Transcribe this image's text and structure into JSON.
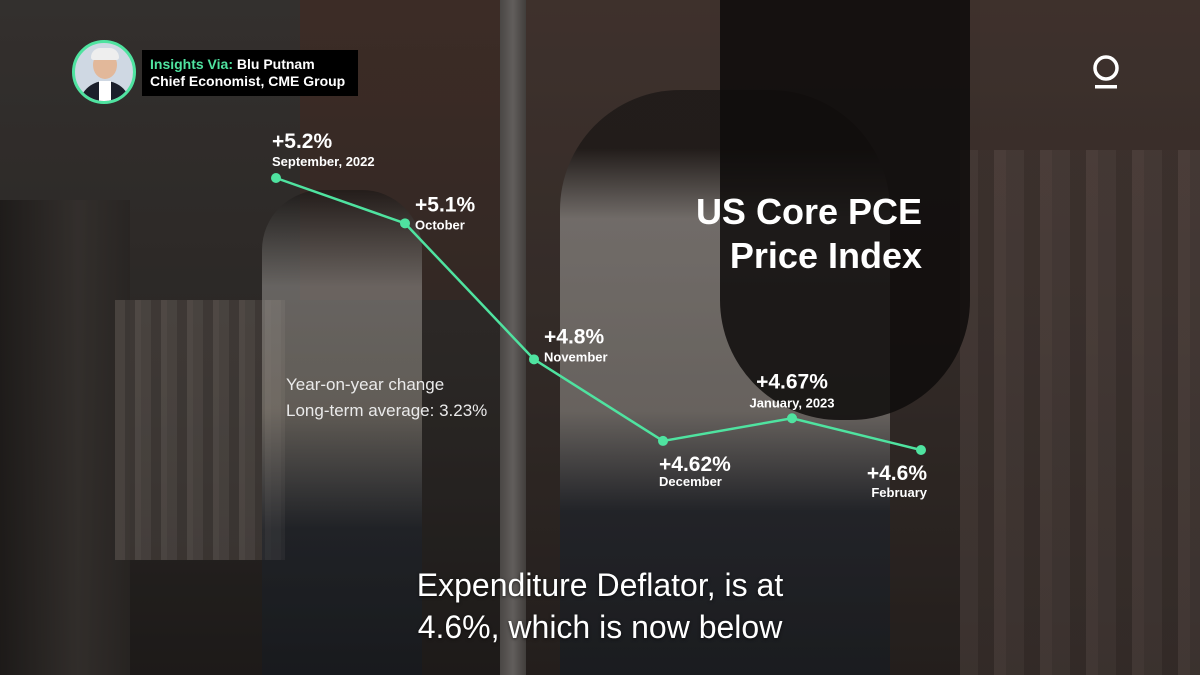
{
  "host": {
    "prefix": "Insights Via:",
    "name": "Blu Putnam",
    "role": "Chief Economist, CME Group"
  },
  "title_line1": "US Core PCE",
  "title_line2": "Price Index",
  "notes": {
    "line1": "Year-on-year change",
    "line2": "Long-term average: 3.23%"
  },
  "caption": {
    "line1": "Expenditure Deflator, is at",
    "line2": "4.6%, which is now below"
  },
  "colors": {
    "accent": "#4fe3a0",
    "text": "#ffffff"
  },
  "chart_data": {
    "type": "line",
    "title": "US Core PCE Price Index",
    "unit": "%",
    "points": [
      {
        "x": "September, 2022",
        "y": 5.2,
        "value_label": "+5.2%",
        "month_label": "September, 2022"
      },
      {
        "x": "October",
        "y": 5.1,
        "value_label": "+5.1%",
        "month_label": "October"
      },
      {
        "x": "November",
        "y": 4.8,
        "value_label": "+4.8%",
        "month_label": "November"
      },
      {
        "x": "December",
        "y": 4.62,
        "value_label": "+4.62%",
        "month_label": "December"
      },
      {
        "x": "January, 2023",
        "y": 4.67,
        "value_label": "+4.67%",
        "month_label": "January, 2023"
      },
      {
        "x": "February",
        "y": 4.6,
        "value_label": "+4.6%",
        "month_label": "February"
      }
    ],
    "long_term_average": 3.23,
    "grid": false,
    "axes_visible": false
  }
}
